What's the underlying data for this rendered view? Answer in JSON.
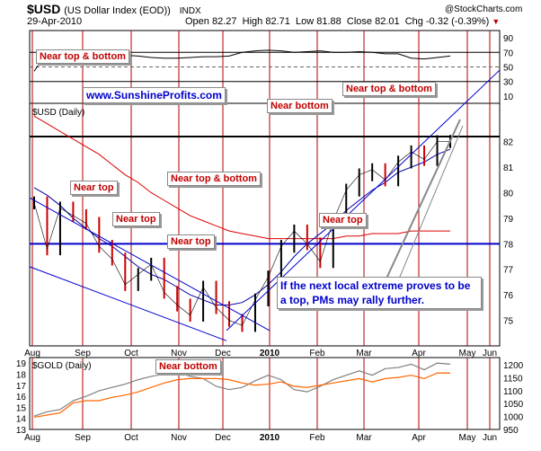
{
  "header": {
    "symbol": "$USD",
    "name": "(US Dollar Index (EOD))",
    "exchange": "INDX",
    "date": "29-Apr-2010",
    "open_label": "Open",
    "open": "82.27",
    "high_label": "High",
    "high": "82.71",
    "low_label": "Low",
    "low": "81.88",
    "close_label": "Close",
    "close": "82.01",
    "chg_label": "Chg",
    "chg": "-0.32 (-0.39%)",
    "copyright": "@StockCharts.com"
  },
  "website": "www.SunshineProfits.com",
  "annotations": {
    "near_top_bottom_1": "Near top & bottom",
    "near_top_1": "Near top",
    "near_top_2": "Near top",
    "near_top_3": "Near top",
    "near_top_bottom_2": "Near top & bottom",
    "near_bottom_1": "Near bottom",
    "near_top_4": "Near top",
    "near_top_bottom_3": "Near top & bottom",
    "near_bottom_2": "Near bottom",
    "comment": "If the next local extreme proves to be a top, PMs may rally further."
  },
  "chart_data": [
    {
      "type": "line",
      "panel": "rsi",
      "yticks": [
        10,
        30,
        50,
        70,
        90
      ],
      "ylim": [
        0,
        100
      ],
      "ref_lines": [
        70,
        30
      ],
      "x": [
        0,
        6,
        12,
        18,
        24,
        30,
        36,
        42,
        48,
        54,
        60,
        66,
        72,
        78,
        84,
        90,
        96,
        102,
        108,
        114,
        120,
        126,
        132,
        138,
        144,
        150,
        156,
        162,
        168,
        174,
        180,
        186,
        192
      ],
      "values": [
        44,
        71,
        68,
        66,
        64,
        66,
        67,
        66,
        65,
        63,
        62,
        62,
        63,
        64,
        64,
        65,
        70,
        72,
        73,
        72,
        70,
        71,
        72,
        70,
        70,
        71,
        70,
        68,
        68,
        62,
        61,
        63,
        65
      ]
    },
    {
      "type": "line",
      "panel": "price",
      "label": "$USD (Daily)",
      "ylim": [
        74,
        83.5
      ],
      "yticks": [
        75,
        76,
        77,
        78,
        79,
        80,
        81,
        82
      ],
      "xticks": [
        "Aug",
        "Sep",
        "Oct",
        "Nov",
        "Dec",
        "2010",
        "Feb",
        "Mar",
        "Apr",
        "May",
        "Jun"
      ],
      "x": [
        0,
        6,
        12,
        18,
        24,
        30,
        36,
        42,
        48,
        54,
        60,
        66,
        72,
        78,
        84,
        90,
        96,
        102,
        108,
        114,
        120,
        126,
        132,
        138,
        144,
        150,
        156,
        162,
        168,
        174,
        180,
        186,
        192
      ],
      "values": [
        79.6,
        77.8,
        79.4,
        79.1,
        78.8,
        77.9,
        77.4,
        76.4,
        76.8,
        77.2,
        76.1,
        75.6,
        75.2,
        76.3,
        75.5,
        75.0,
        74.8,
        75.8,
        76.7,
        77.9,
        78.5,
        78.0,
        77.3,
        78.9,
        80.1,
        80.7,
        80.9,
        80.5,
        81.2,
        81.6,
        81.3,
        82.0,
        82.01
      ],
      "sma_50": [
        80.2,
        79.9,
        79.5,
        79.0,
        78.6,
        78.2,
        77.9,
        77.5,
        77.1,
        76.8,
        76.6,
        76.3,
        76.0,
        75.8,
        75.6,
        75.6,
        75.7,
        76.0,
        76.4,
        76.9,
        77.5,
        78.0,
        78.4,
        78.8,
        79.3,
        79.7,
        80.1,
        80.4,
        80.8,
        81.0,
        81.2,
        81.5,
        81.7
      ],
      "sma_200": [
        83.0,
        82.7,
        82.4,
        82.1,
        81.8,
        81.5,
        81.1,
        80.7,
        80.4,
        80.0,
        79.7,
        79.4,
        79.1,
        78.9,
        78.7,
        78.5,
        78.4,
        78.3,
        78.2,
        78.2,
        78.2,
        78.2,
        78.2,
        78.2,
        78.3,
        78.3,
        78.4,
        78.4,
        78.4,
        78.5,
        78.5,
        78.5,
        78.5
      ],
      "horizontal_lines": [
        78.0,
        82.2
      ]
    },
    {
      "type": "line",
      "panel": "gold",
      "label": "$GOLD (Daily)",
      "yticks_left": [
        13,
        14,
        15,
        16,
        17,
        18,
        19
      ],
      "yticks_right": [
        950,
        1000,
        1050,
        1100,
        1150,
        1200
      ],
      "x": [
        0,
        6,
        12,
        18,
        24,
        30,
        36,
        42,
        48,
        54,
        60,
        66,
        72,
        78,
        84,
        90,
        96,
        102,
        108,
        114,
        120,
        126,
        132,
        138,
        144,
        150,
        156,
        162,
        168,
        174,
        180,
        186,
        192
      ],
      "series": [
        {
          "color": "#808080",
          "values": [
            14.2,
            14.6,
            14.8,
            15.6,
            16.0,
            16.5,
            16.8,
            17.1,
            17.5,
            17.8,
            18.0,
            18.2,
            17.8,
            17.6,
            16.9,
            16.6,
            16.8,
            17.4,
            17.9,
            17.5,
            16.6,
            16.4,
            16.9,
            17.5,
            17.9,
            18.3,
            17.9,
            18.5,
            18.6,
            18.9,
            18.4,
            19.0,
            18.9
          ]
        },
        {
          "color": "#ff6600",
          "values": [
            14.1,
            14.3,
            14.5,
            15.4,
            15.6,
            15.6,
            15.9,
            16.1,
            16.4,
            16.8,
            17.2,
            17.5,
            17.6,
            17.6,
            17.6,
            17.5,
            17.2,
            17.0,
            17.1,
            17.3,
            16.9,
            16.8,
            17.0,
            17.2,
            17.4,
            17.6,
            17.3,
            17.6,
            17.7,
            17.9,
            17.6,
            18.1,
            18.1
          ]
        }
      ]
    }
  ]
}
